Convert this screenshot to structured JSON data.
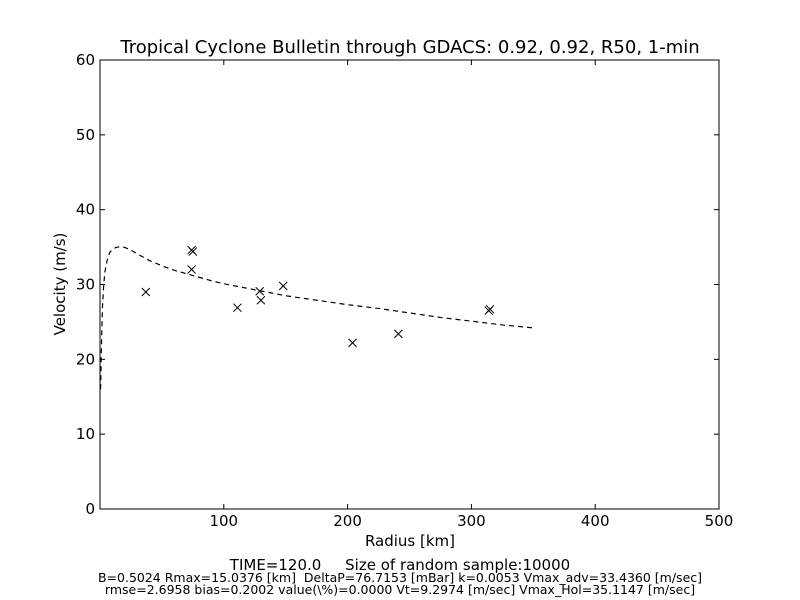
{
  "chart_data": {
    "type": "scatter",
    "title": "Tropical Cyclone Bulletin through GDACS: 0.92, 0.92, R50, 1-min",
    "xlabel": "Radius [km]",
    "ylabel": "Velocity (m/s)",
    "xlim": [
      0,
      500
    ],
    "ylim": [
      0,
      60
    ],
    "x_ticks": [
      100,
      200,
      300,
      400,
      500
    ],
    "y_ticks": [
      0,
      10,
      20,
      30,
      40,
      50,
      60
    ],
    "x_tick_labels": [
      "100",
      "200",
      "300",
      "400",
      "500"
    ],
    "y_tick_labels": [
      "0",
      "10",
      "20",
      "30",
      "40",
      "50",
      "60"
    ],
    "grid": false,
    "series": [
      {
        "style": "dashed-line",
        "color": "#000000",
        "points": [
          [
            0.5,
            16
          ],
          [
            1,
            20.5
          ],
          [
            1.5,
            24
          ],
          [
            2,
            27
          ],
          [
            3,
            30
          ],
          [
            4,
            31.7
          ],
          [
            5,
            32.6
          ],
          [
            6,
            33.4
          ],
          [
            7,
            33.9
          ],
          [
            8,
            34.3
          ],
          [
            10,
            34.7
          ],
          [
            13,
            34.95
          ],
          [
            16,
            35.05
          ],
          [
            20,
            34.95
          ],
          [
            25,
            34.6
          ],
          [
            30,
            34.1
          ],
          [
            40,
            33.2
          ],
          [
            50,
            32.5
          ],
          [
            60,
            31.9
          ],
          [
            75,
            31.2
          ],
          [
            90,
            30.5
          ],
          [
            100,
            30.1
          ],
          [
            125,
            29.3
          ],
          [
            150,
            28.5
          ],
          [
            175,
            27.9
          ],
          [
            200,
            27.3
          ],
          [
            225,
            26.8
          ],
          [
            250,
            26.2
          ],
          [
            275,
            25.6
          ],
          [
            300,
            25.1
          ],
          [
            325,
            24.6
          ],
          [
            350,
            24.2
          ]
        ]
      },
      {
        "style": "x-markers",
        "color": "#000000",
        "points": [
          [
            37,
            29
          ],
          [
            74,
            34.6
          ],
          [
            75,
            34.4
          ],
          [
            74,
            32
          ],
          [
            111,
            26.9
          ],
          [
            129,
            29.1
          ],
          [
            130,
            27.9
          ],
          [
            148,
            29.8
          ],
          [
            204,
            22.2
          ],
          [
            241,
            23.4
          ],
          [
            314,
            26.5
          ],
          [
            315,
            26.7
          ]
        ]
      }
    ]
  },
  "footer": {
    "line1": "TIME=120.0     Size of random sample:10000",
    "line2": "B=0.5024 Rmax=15.0376 [km]  DeltaP=76.7153 [mBar] k=0.0053 Vmax_adv=33.4360 [m/sec]",
    "line3": "rmse=2.6958 bias=0.2002 value(\\%)=0.0000 Vt=9.2974 [m/sec] Vmax_Hol=35.1147 [m/sec]"
  }
}
